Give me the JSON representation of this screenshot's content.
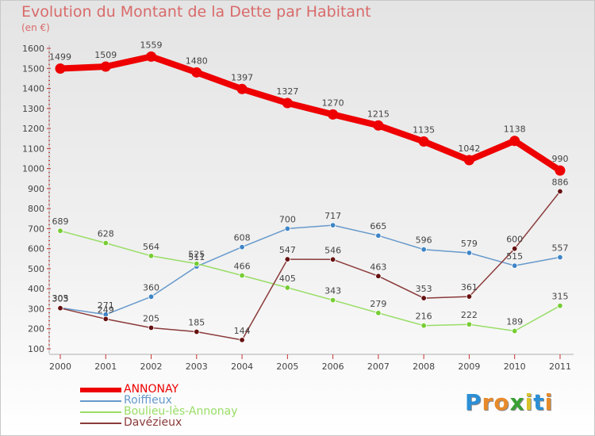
{
  "chart_data": {
    "type": "line",
    "title": "Evolution du Montant de la Dette par Habitant",
    "subtitle": "(en €)",
    "x": [
      "2000",
      "2001",
      "2002",
      "2003",
      "2004",
      "2005",
      "2006",
      "2007",
      "2008",
      "2009",
      "2010",
      "2011"
    ],
    "ylim": [
      100,
      1600
    ],
    "yticks": [
      100,
      200,
      300,
      400,
      500,
      600,
      700,
      800,
      900,
      1000,
      1100,
      1200,
      1300,
      1400,
      1500,
      1600
    ],
    "grid": false,
    "legend_position": "bottom-left",
    "series": [
      {
        "name": "ANNONAY",
        "color": "#ee0000",
        "emphasis": true,
        "values": [
          1499,
          1509,
          1559,
          1480,
          1397,
          1327,
          1270,
          1215,
          1135,
          1042,
          1138,
          990
        ],
        "labels": [
          "1499",
          "1509",
          "1559",
          "1480",
          "1397",
          "1327",
          "1270",
          "1215",
          "1135",
          "1042",
          "1138",
          "990"
        ]
      },
      {
        "name": "Roiffieux",
        "color": "#6699cc",
        "marker": "#3d85c6",
        "emphasis": false,
        "values": [
          305,
          271,
          360,
          511,
          608,
          700,
          717,
          665,
          596,
          579,
          515,
          557
        ],
        "labels": [
          "305",
          "271",
          "360",
          "511",
          "608",
          "700",
          "717",
          "665",
          "596",
          "579",
          "515",
          "557"
        ]
      },
      {
        "name": "Boulieu-lès-Annonay",
        "color": "#99dd66",
        "marker": "#77cc33",
        "emphasis": false,
        "values": [
          689,
          628,
          564,
          525,
          466,
          405,
          343,
          279,
          216,
          222,
          189,
          315
        ],
        "labels": [
          "689",
          "628",
          "564",
          "525",
          "466",
          "405",
          "343",
          "279",
          "216",
          "222",
          "189",
          "315"
        ]
      },
      {
        "name": "Davézieux",
        "color": "#8b3a3a",
        "marker": "#661111",
        "emphasis": false,
        "values": [
          303,
          249,
          205,
          185,
          144,
          547,
          546,
          463,
          353,
          361,
          600,
          886
        ],
        "labels": [
          "303",
          "249",
          "205",
          "185",
          "144",
          "547",
          "546",
          "463",
          "353",
          "361",
          "600",
          "886"
        ]
      }
    ]
  },
  "legend": {
    "items": [
      {
        "label": "ANNONAY",
        "color": "#ee0000"
      },
      {
        "label": "Roiffieux",
        "color": "#6699cc"
      },
      {
        "label": "Boulieu-lès-Annonay",
        "color": "#99dd66"
      },
      {
        "label": "Davézieux",
        "color": "#8b3a3a"
      }
    ]
  },
  "logo": {
    "letters": [
      "P",
      "r",
      "o",
      "x",
      "i",
      "t",
      "i"
    ],
    "colors": [
      "#2a8fd6",
      "#e88a2a",
      "#e88a2a",
      "#3aa035",
      "#d9c22a",
      "#2a8fd6",
      "#e88a2a"
    ]
  }
}
